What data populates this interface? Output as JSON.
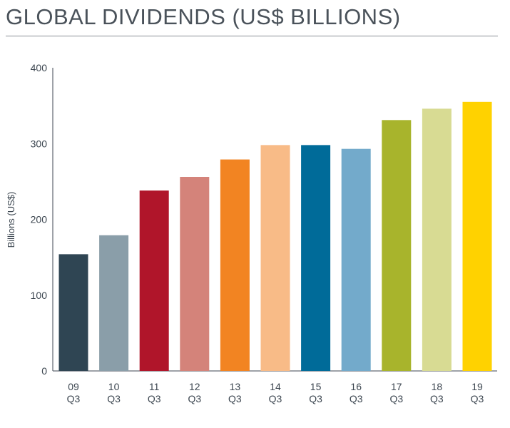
{
  "chart_data": {
    "type": "bar",
    "title": "GLOBAL DIVIDENDS (US$ BILLIONS)",
    "ylabel": "Billions (US$)",
    "xlabel": "",
    "ylim": [
      0,
      400
    ],
    "yticks": [
      "0",
      "100",
      "200",
      "300",
      "400"
    ],
    "categories": [
      [
        "09",
        "Q3"
      ],
      [
        "10",
        "Q3"
      ],
      [
        "11",
        "Q3"
      ],
      [
        "12",
        "Q3"
      ],
      [
        "13",
        "Q3"
      ],
      [
        "14",
        "Q3"
      ],
      [
        "15",
        "Q3"
      ],
      [
        "16",
        "Q3"
      ],
      [
        "17",
        "Q3"
      ],
      [
        "18",
        "Q3"
      ],
      [
        "19",
        "Q3"
      ]
    ],
    "values": [
      154,
      179,
      238,
      256,
      279,
      298,
      298,
      293,
      331,
      346,
      355
    ],
    "colors": [
      "#2f4553",
      "#8a9ea9",
      "#b0152a",
      "#d4837a",
      "#f28422",
      "#f8bb87",
      "#006b99",
      "#73aacb",
      "#a8b42c",
      "#d8db93",
      "#ffd200"
    ],
    "grid": false
  }
}
